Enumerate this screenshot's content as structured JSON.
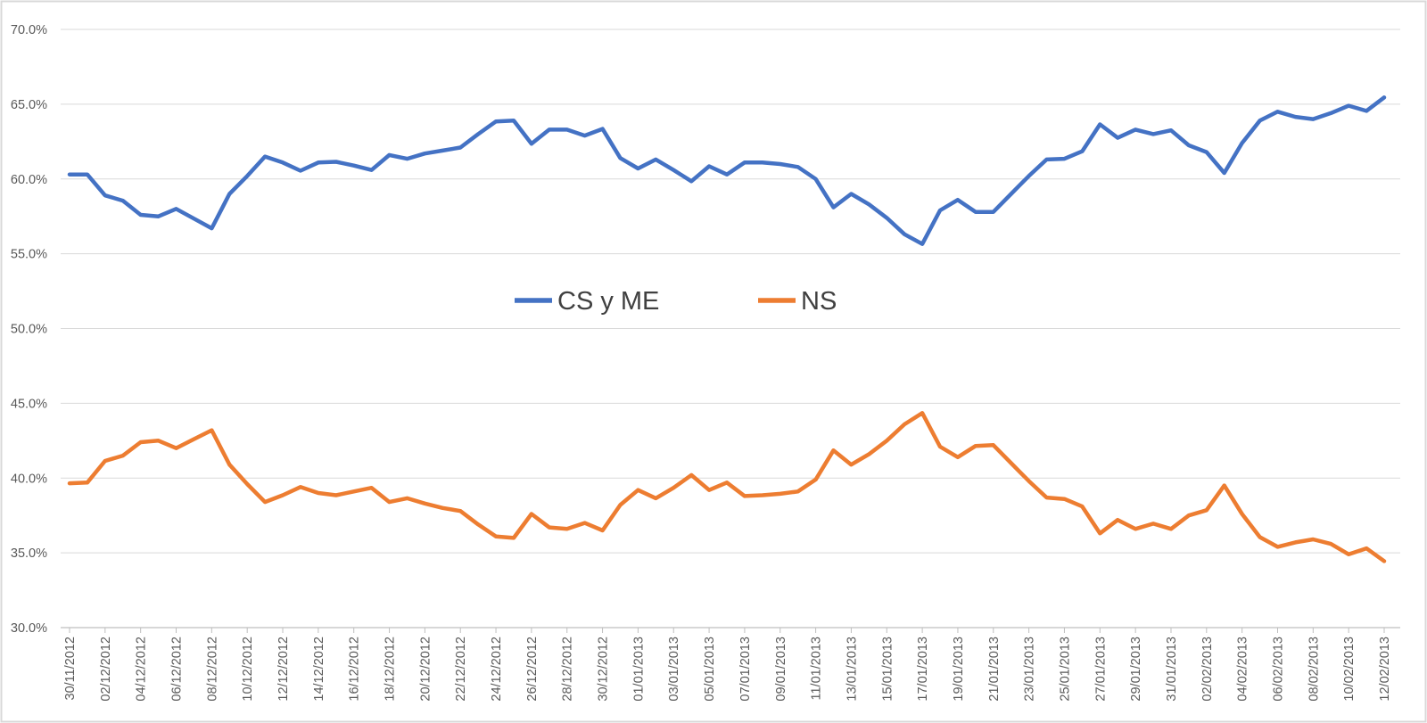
{
  "chart": {
    "background": "#FFFFFF",
    "border_color": "#D9D9D9",
    "gridline_color": "#D9D9D9",
    "axis_line_color": "#BFBFBF",
    "tick_label_color": "#595959",
    "legend_text_color": "#404040"
  },
  "chart_data": {
    "type": "line",
    "title": "",
    "xlabel": "",
    "ylabel": "",
    "ylim": [
      30,
      70
    ],
    "grid": true,
    "legend_position": "center-middle",
    "y_ticks": [
      {
        "value": 70,
        "label": "70.0%"
      },
      {
        "value": 65,
        "label": "65.0%"
      },
      {
        "value": 60,
        "label": "60.0%"
      },
      {
        "value": 55,
        "label": "55.0%"
      },
      {
        "value": 50,
        "label": "50.0%"
      },
      {
        "value": 45,
        "label": "45.0%"
      },
      {
        "value": 40,
        "label": "40.0%"
      },
      {
        "value": 35,
        "label": "35.0%"
      },
      {
        "value": 30,
        "label": "30.0%"
      }
    ],
    "x_tick_every": 2,
    "x_tick_labels": [
      "30/11/2012",
      "02/12/2012",
      "04/12/2012",
      "06/12/2012",
      "08/12/2012",
      "10/12/2012",
      "12/12/2012",
      "14/12/2012",
      "16/12/2012",
      "18/12/2012",
      "20/12/2012",
      "22/12/2012",
      "24/12/2012",
      "26/12/2012",
      "28/12/2012",
      "30/12/2012",
      "01/01/2013",
      "03/01/2013",
      "05/01/2013",
      "07/01/2013",
      "09/01/2013",
      "11/01/2013",
      "13/01/2013",
      "15/01/2013",
      "17/01/2013",
      "19/01/2013",
      "21/01/2013",
      "23/01/2013",
      "25/01/2013",
      "27/01/2013",
      "29/01/2013",
      "31/01/2013",
      "02/02/2013",
      "04/02/2013",
      "06/02/2013",
      "08/02/2013",
      "10/02/2013",
      "12/02/2013"
    ],
    "x": [
      "30/11/2012",
      "01/12/2012",
      "02/12/2012",
      "03/12/2012",
      "04/12/2012",
      "05/12/2012",
      "06/12/2012",
      "07/12/2012",
      "08/12/2012",
      "09/12/2012",
      "10/12/2012",
      "11/12/2012",
      "12/12/2012",
      "13/12/2012",
      "14/12/2012",
      "15/12/2012",
      "16/12/2012",
      "17/12/2012",
      "18/12/2012",
      "19/12/2012",
      "20/12/2012",
      "21/12/2012",
      "22/12/2012",
      "23/12/2012",
      "24/12/2012",
      "25/12/2012",
      "26/12/2012",
      "27/12/2012",
      "28/12/2012",
      "29/12/2012",
      "30/12/2012",
      "31/12/2012",
      "01/01/2013",
      "02/01/2013",
      "03/01/2013",
      "04/01/2013",
      "05/01/2013",
      "06/01/2013",
      "07/01/2013",
      "08/01/2013",
      "09/01/2013",
      "10/01/2013",
      "11/01/2013",
      "12/01/2013",
      "13/01/2013",
      "14/01/2013",
      "15/01/2013",
      "16/01/2013",
      "17/01/2013",
      "18/01/2013",
      "19/01/2013",
      "20/01/2013",
      "21/01/2013",
      "22/01/2013",
      "23/01/2013",
      "24/01/2013",
      "25/01/2013",
      "26/01/2013",
      "27/01/2013",
      "28/01/2013",
      "29/01/2013",
      "30/01/2013",
      "31/01/2013",
      "01/02/2013",
      "02/02/2013",
      "03/02/2013",
      "04/02/2013",
      "05/02/2013",
      "06/02/2013",
      "07/02/2013",
      "08/02/2013",
      "09/02/2013",
      "10/02/2013",
      "11/02/2013",
      "12/02/2013"
    ],
    "series": [
      {
        "name": "CS y ME",
        "color": "#4472C4",
        "values": [
          60.3,
          60.3,
          58.9,
          58.55,
          57.6,
          57.5,
          58.0,
          57.35,
          56.7,
          59.0,
          60.2,
          61.5,
          61.1,
          60.55,
          61.1,
          61.15,
          60.9,
          60.6,
          61.6,
          61.35,
          61.7,
          61.9,
          62.1,
          63.0,
          63.85,
          63.9,
          62.35,
          63.3,
          63.3,
          62.9,
          63.35,
          61.4,
          60.7,
          61.3,
          60.6,
          59.85,
          60.85,
          60.3,
          61.1,
          61.1,
          61.0,
          60.8,
          60.0,
          58.1,
          59.0,
          58.3,
          57.4,
          56.3,
          55.65,
          57.9,
          58.6,
          57.8,
          57.8,
          59.0,
          60.2,
          61.3,
          61.35,
          61.85,
          63.65,
          62.75,
          63.3,
          63.0,
          63.25,
          62.25,
          61.8,
          60.4,
          62.4,
          63.9,
          64.5,
          64.15,
          64.0,
          64.4,
          64.9,
          64.55,
          65.45
        ]
      },
      {
        "name": "NS",
        "color": "#ED7D31",
        "values": [
          39.65,
          39.7,
          41.15,
          41.5,
          42.4,
          42.5,
          42.0,
          42.6,
          43.2,
          40.9,
          39.6,
          38.4,
          38.85,
          39.4,
          39.0,
          38.85,
          39.1,
          39.35,
          38.4,
          38.65,
          38.3,
          38.0,
          37.8,
          36.9,
          36.1,
          36.0,
          37.6,
          36.7,
          36.6,
          37.0,
          36.5,
          38.2,
          39.2,
          38.65,
          39.35,
          40.2,
          39.2,
          39.7,
          38.8,
          38.85,
          38.95,
          39.1,
          39.9,
          41.85,
          40.9,
          41.6,
          42.5,
          43.6,
          44.35,
          42.1,
          41.4,
          42.15,
          42.2,
          41.0,
          39.8,
          38.7,
          38.6,
          38.1,
          36.3,
          37.2,
          36.6,
          36.95,
          36.6,
          37.5,
          37.85,
          39.5,
          37.6,
          36.05,
          35.4,
          35.7,
          35.9,
          35.6,
          34.9,
          35.3,
          34.45
        ]
      }
    ]
  }
}
